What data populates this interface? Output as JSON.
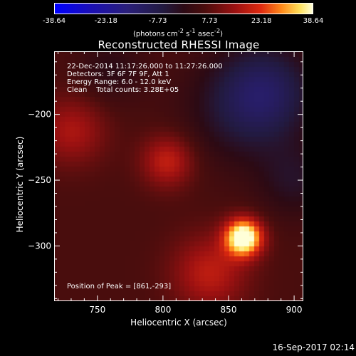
{
  "colorbar": {
    "ticks": [
      "-38.64",
      "-23.18",
      "-7.73",
      "7.73",
      "23.18",
      "38.64"
    ],
    "units_html": "(photons cm<sup>-2</sup> s<sup>-1</sup> asec<sup>-2</sup>)"
  },
  "title": "Reconstructed RHESSI Image",
  "info": {
    "time": "22-Dec-2014 11:17:26.000 to 11:27:26.000",
    "detectors": "Detectors: 3F 6F 7F 9F, Att 1",
    "energy": "Energy Range: 6.0 - 12.0 keV",
    "method": "Clean    Total counts: 3.28E+05",
    "peak": "Position of Peak = [861,-293]"
  },
  "timestamp": "16-Sep-2017 02:14",
  "chart_data": {
    "type": "heatmap",
    "title": "Reconstructed RHESSI Image",
    "xlabel": "Heliocentric X (arcsec)",
    "ylabel": "Heliocentric Y (arcsec)",
    "xlim": [
      717,
      907
    ],
    "ylim": [
      -342,
      -152
    ],
    "x_ticks": [
      750,
      800,
      850,
      900
    ],
    "y_ticks": [
      -200,
      -250,
      -300
    ],
    "colorbar_range": [
      -38.64,
      38.64
    ],
    "peak_position": [
      861,
      -293
    ],
    "peak_value": 38.64,
    "features": [
      {
        "x": 861,
        "y": -293,
        "value": 38.6,
        "sigma": 10
      },
      {
        "x": 803,
        "y": -235,
        "value": 14,
        "sigma": 14
      },
      {
        "x": 730,
        "y": -212,
        "value": 11,
        "sigma": 18
      },
      {
        "x": 835,
        "y": -320,
        "value": 13,
        "sigma": 20
      },
      {
        "x": 880,
        "y": -180,
        "value": -12,
        "sigma": 25
      },
      {
        "x": 860,
        "y": -195,
        "value": -10,
        "sigma": 30
      },
      {
        "x": 760,
        "y": -165,
        "value": -6,
        "sigma": 18
      },
      {
        "x": 900,
        "y": -250,
        "value": -8,
        "sigma": 20
      }
    ]
  }
}
